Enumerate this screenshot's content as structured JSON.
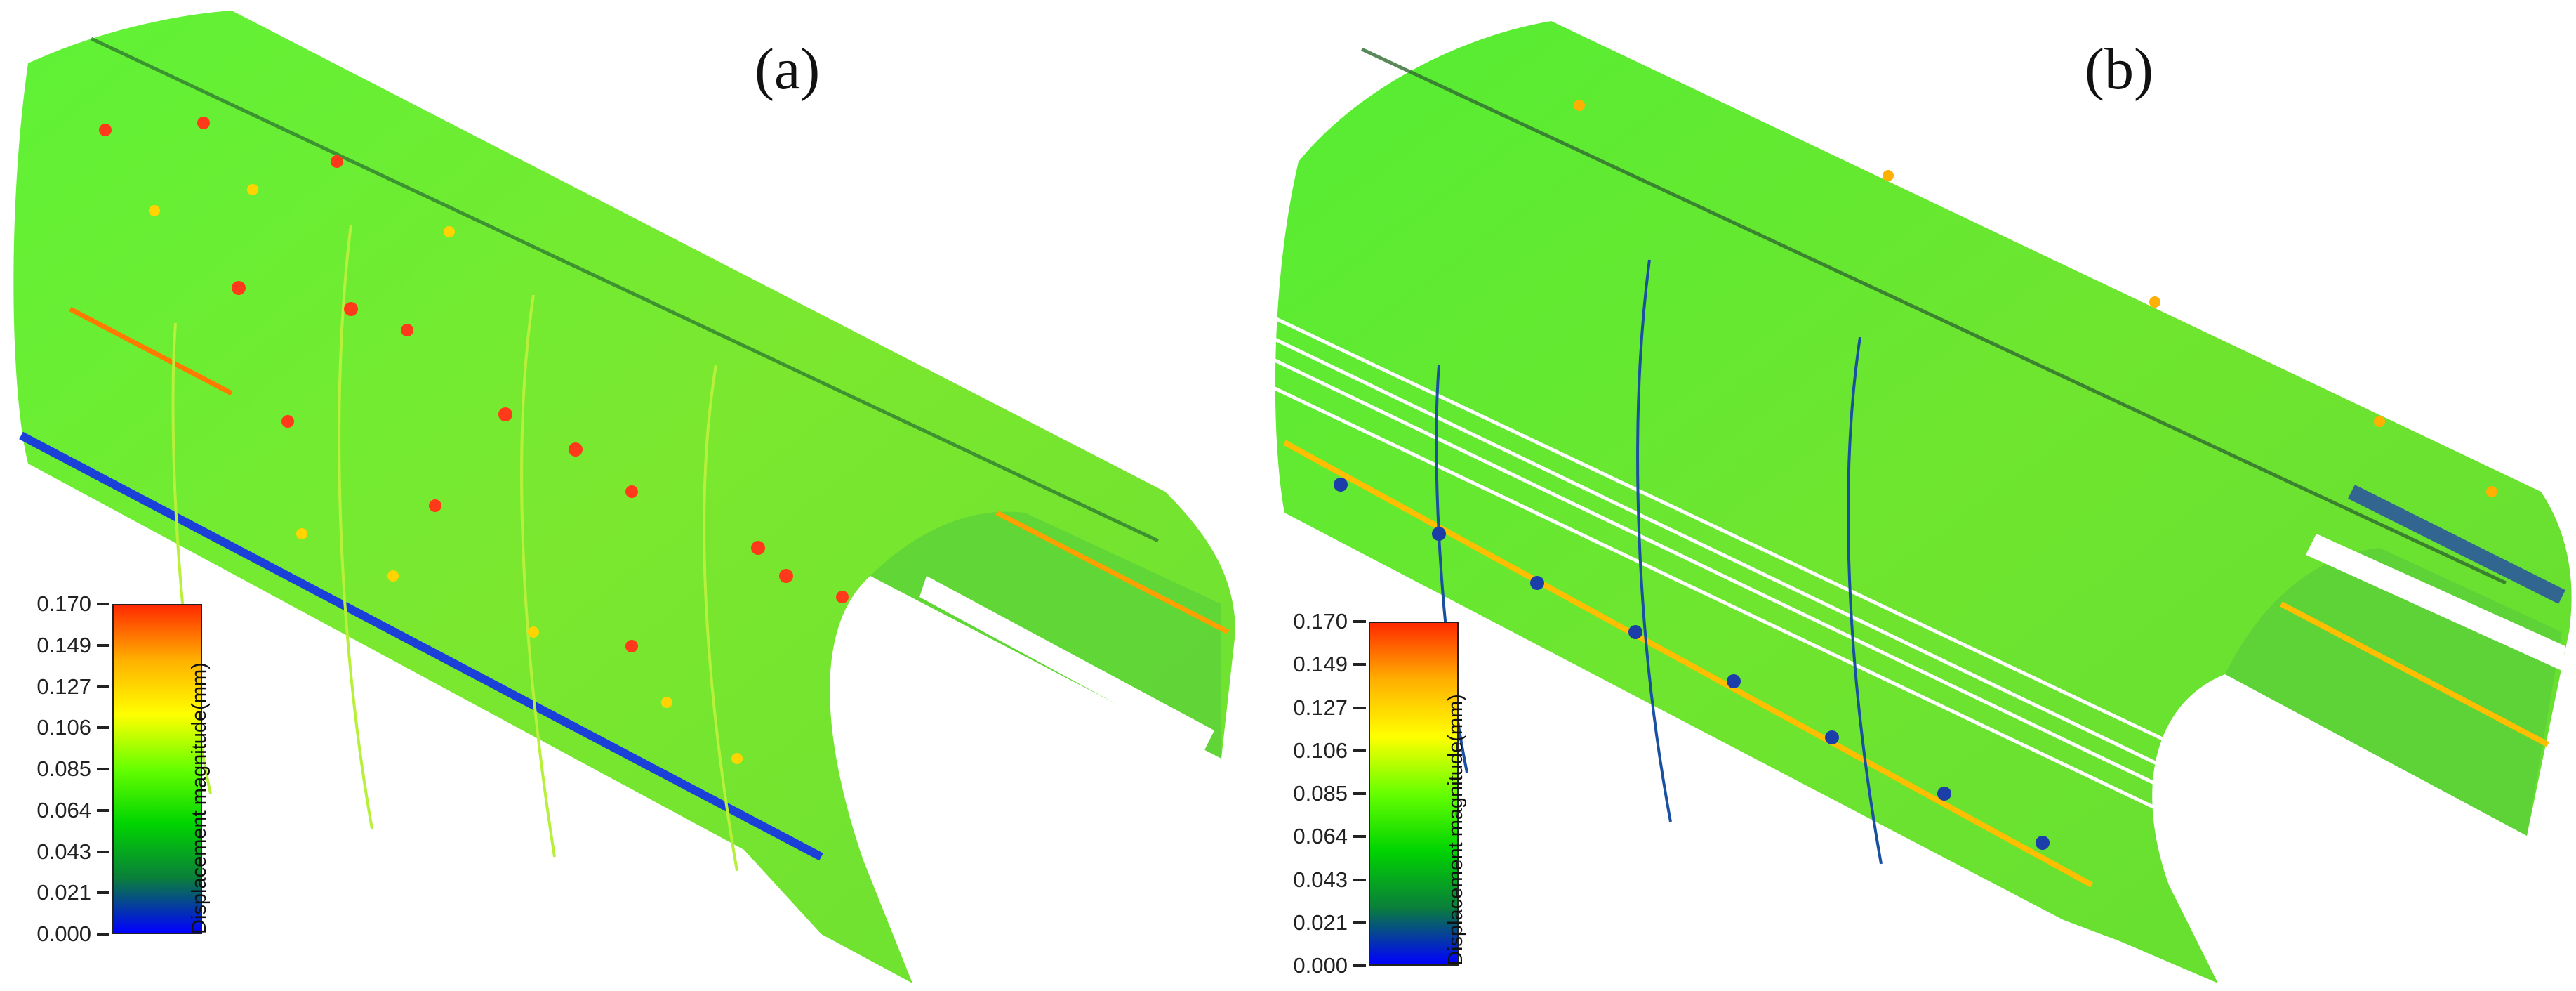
{
  "panels": [
    {
      "label": "(a)"
    },
    {
      "label": "(b)"
    }
  ],
  "legend": {
    "title": "Displacement magnitude(mm)",
    "ticks": [
      "0.170",
      "0.149",
      "0.127",
      "0.106",
      "0.085",
      "0.064",
      "0.043",
      "0.021",
      "0.000"
    ],
    "range": [
      0.0,
      0.17
    ],
    "colorscale": [
      "#0000ff",
      "#0a7f3a",
      "#00d400",
      "#66ff00",
      "#ffff00",
      "#ffb000",
      "#ff2a00"
    ]
  }
}
